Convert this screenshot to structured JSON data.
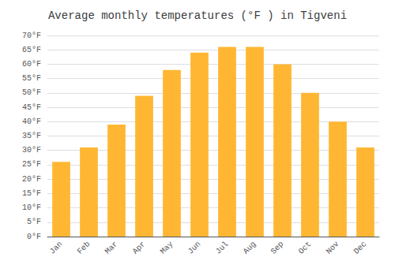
{
  "chart_data": {
    "type": "bar",
    "title": "Average monthly temperatures (°F ) in Tigveni",
    "categories": [
      "Jan",
      "Feb",
      "Mar",
      "Apr",
      "May",
      "Jun",
      "Jul",
      "Aug",
      "Sep",
      "Oct",
      "Nov",
      "Dec"
    ],
    "values": [
      26,
      31,
      39,
      49,
      58,
      64,
      66,
      66,
      60,
      50,
      40,
      31
    ],
    "color": "#FFB733",
    "ylim": [
      0,
      70
    ],
    "yticks": [
      {
        "value": 0,
        "label": "0°F"
      },
      {
        "value": 5,
        "label": "5°F"
      },
      {
        "value": 10,
        "label": "10°F"
      },
      {
        "value": 15,
        "label": "15°F"
      },
      {
        "value": 20,
        "label": "20°F"
      },
      {
        "value": 25,
        "label": "25°F"
      },
      {
        "value": 30,
        "label": "30°F"
      },
      {
        "value": 35,
        "label": "35°F"
      },
      {
        "value": 40,
        "label": "40°F"
      },
      {
        "value": 45,
        "label": "45°F"
      },
      {
        "value": 50,
        "label": "50°F"
      },
      {
        "value": 55,
        "label": "55°F"
      },
      {
        "value": 60,
        "label": "60°F"
      },
      {
        "value": 65,
        "label": "65°F"
      },
      {
        "value": 70,
        "label": "70°F"
      }
    ],
    "grid": true
  }
}
